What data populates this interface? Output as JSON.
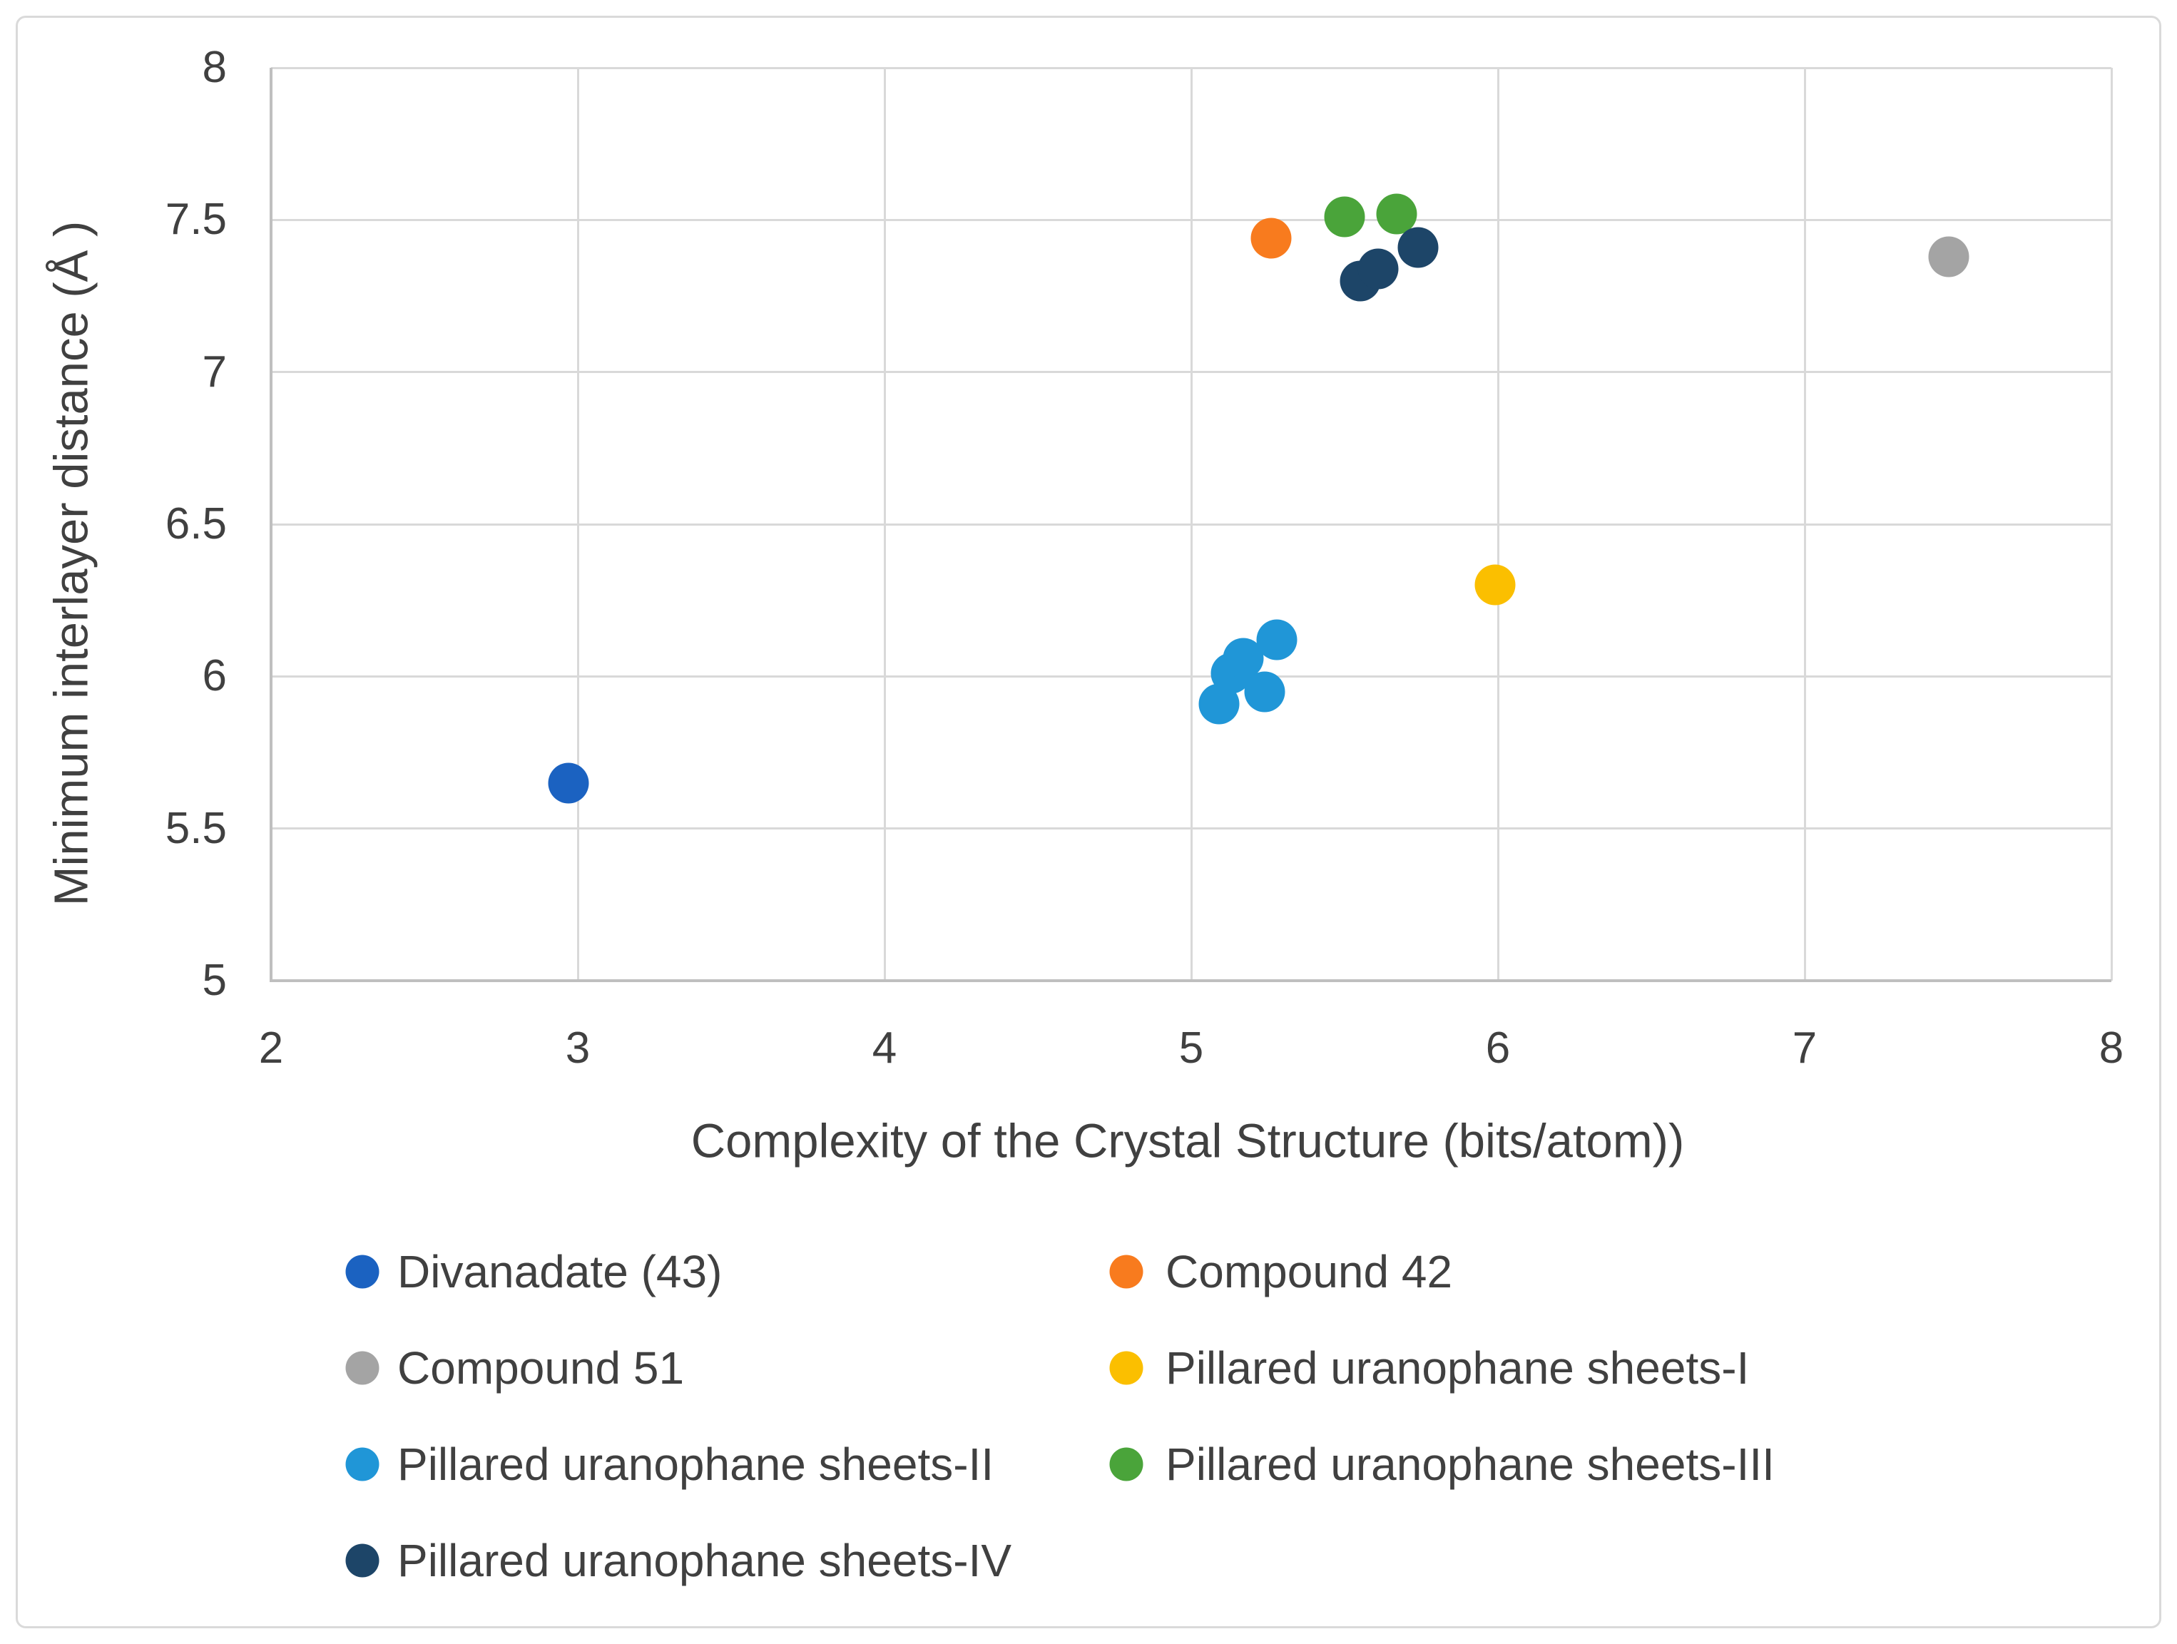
{
  "chart_data": {
    "type": "scatter",
    "title": "",
    "xlabel": "Complexity of the Crystal Structure (bits/atom))",
    "ylabel": "Minimum interlayer distance (Å )",
    "xlim": [
      2,
      8
    ],
    "ylim": [
      5,
      8
    ],
    "xticks": [
      {
        "value": 2,
        "label": "2"
      },
      {
        "value": 3,
        "label": "3"
      },
      {
        "value": 4,
        "label": "4"
      },
      {
        "value": 5,
        "label": "5"
      },
      {
        "value": 6,
        "label": "6"
      },
      {
        "value": 7,
        "label": "7"
      },
      {
        "value": 8,
        "label": "8"
      }
    ],
    "yticks": [
      {
        "value": 5,
        "label": "5"
      },
      {
        "value": 5.5,
        "label": "5.5"
      },
      {
        "value": 6,
        "label": "6"
      },
      {
        "value": 6.5,
        "label": "6.5"
      },
      {
        "value": 7,
        "label": "7"
      },
      {
        "value": 7.5,
        "label": "7.5"
      },
      {
        "value": 8,
        "label": "8"
      }
    ],
    "grid": true,
    "legend_position": "bottom, two columns",
    "series": [
      {
        "name": "Divanadate (43)",
        "color": "#1b62c1",
        "points": [
          [
            2.97,
            5.65
          ]
        ]
      },
      {
        "name": "Compound 42",
        "color": "#f87b1e",
        "points": [
          [
            5.26,
            7.44
          ]
        ]
      },
      {
        "name": "Compound 51",
        "color": "#a4a4a4",
        "points": [
          [
            7.47,
            7.38
          ]
        ]
      },
      {
        "name": "Pillared uranophane sheets-I",
        "color": "#fbbf00",
        "points": [
          [
            5.99,
            6.3
          ]
        ]
      },
      {
        "name": "Pillared uranophane sheets-II",
        "color": "#2096d7",
        "points": [
          [
            5.13,
            6.01
          ],
          [
            5.17,
            6.06
          ],
          [
            5.09,
            5.91
          ],
          [
            5.24,
            5.95
          ],
          [
            5.28,
            6.12
          ]
        ]
      },
      {
        "name": "Pillared uranophane sheets-III",
        "color": "#4aa43a",
        "points": [
          [
            5.5,
            7.51
          ],
          [
            5.67,
            7.52
          ]
        ]
      },
      {
        "name": "Pillared uranophane sheets-IV",
        "color": "#1d4568",
        "points": [
          [
            5.55,
            7.3
          ],
          [
            5.61,
            7.34
          ],
          [
            5.74,
            7.41
          ]
        ]
      }
    ],
    "legend": {
      "left_column_series": [
        0,
        2,
        4,
        6
      ],
      "right_column_series": [
        1,
        3,
        5
      ]
    }
  },
  "colors": {
    "background": "#ffffff",
    "figure_border": "#dadada",
    "gridline": "#d9d9d9",
    "axis_line": "#bfbfbf",
    "text": "#404040"
  }
}
